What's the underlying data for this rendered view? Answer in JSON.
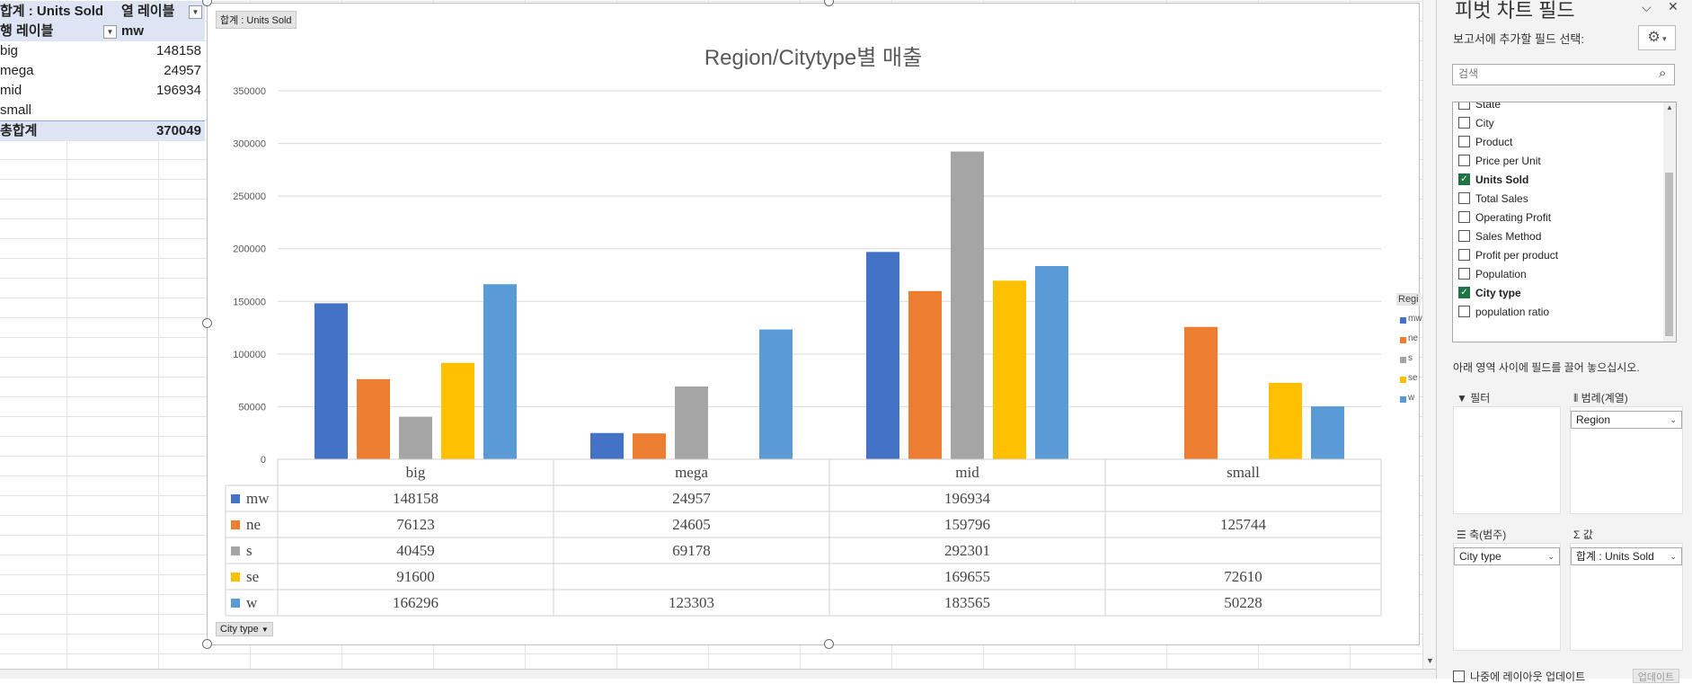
{
  "pivot": {
    "sum_label": "합계 : Units Sold",
    "col_label": "열 레이블",
    "row_label": "행 레이블",
    "col_value": "mw",
    "rows": [
      {
        "label": "big",
        "value": "148158"
      },
      {
        "label": "mega",
        "value": "24957"
      },
      {
        "label": "mid",
        "value": "196934"
      },
      {
        "label": "small",
        "value": ""
      }
    ],
    "total_label": "총합계",
    "total_value": "370049"
  },
  "chart_data": {
    "type": "bar",
    "title": "Region/Citytype별 매출",
    "categories": [
      "big",
      "mega",
      "mid",
      "small"
    ],
    "series": [
      {
        "name": "mw",
        "color": "#4472C4",
        "values": [
          148158,
          24957,
          196934,
          null
        ]
      },
      {
        "name": "ne",
        "color": "#ED7D31",
        "values": [
          76123,
          24605,
          159796,
          125744
        ]
      },
      {
        "name": "s",
        "color": "#A5A5A5",
        "values": [
          40459,
          69178,
          292301,
          null
        ]
      },
      {
        "name": "se",
        "color": "#FFC000",
        "values": [
          91600,
          null,
          169655,
          72610
        ]
      },
      {
        "name": "w",
        "color": "#5B9BD5",
        "values": [
          166296,
          123303,
          183565,
          50228
        ]
      }
    ],
    "ylim": [
      0,
      350000
    ],
    "yticks": [
      0,
      50000,
      100000,
      150000,
      200000,
      250000,
      300000,
      350000
    ],
    "grid": true,
    "data_table": true,
    "legend_title": "Regi",
    "legend_placement": "right",
    "value_field_button": "합계 : Units Sold",
    "axis_field_button": "City type"
  },
  "pane": {
    "title": "피벗 차트 필드",
    "choose_label": "보고서에 추가할 필드 선택:",
    "search_placeholder": "검색",
    "fields": [
      {
        "name": "State",
        "checked": false
      },
      {
        "name": "City",
        "checked": false
      },
      {
        "name": "Product",
        "checked": false
      },
      {
        "name": "Price per Unit",
        "checked": false
      },
      {
        "name": "Units Sold",
        "checked": true
      },
      {
        "name": "Total Sales",
        "checked": false
      },
      {
        "name": "Operating Profit",
        "checked": false
      },
      {
        "name": "Sales Method",
        "checked": false
      },
      {
        "name": "Profit per product",
        "checked": false
      },
      {
        "name": "Population",
        "checked": false
      },
      {
        "name": "City type",
        "checked": true
      },
      {
        "name": "population ratio",
        "checked": false
      }
    ],
    "drag_hint": "아래 영역 사이에 필드를 끌어 놓으십시오.",
    "areas": {
      "filter_title": "필터",
      "legend_title": "범례(계열)",
      "legend_chip": "Region",
      "axis_title": "축(범주)",
      "axis_chip": "City type",
      "values_title": "값",
      "values_chip": "합계 : Units Sold"
    },
    "defer_label": "나중에 레이아웃 업데이트",
    "update_label": "업데이트"
  },
  "icons": {
    "chevron": "chevron-down-icon",
    "close": "close-icon",
    "gear": "gear-icon",
    "search": "search-icon"
  }
}
